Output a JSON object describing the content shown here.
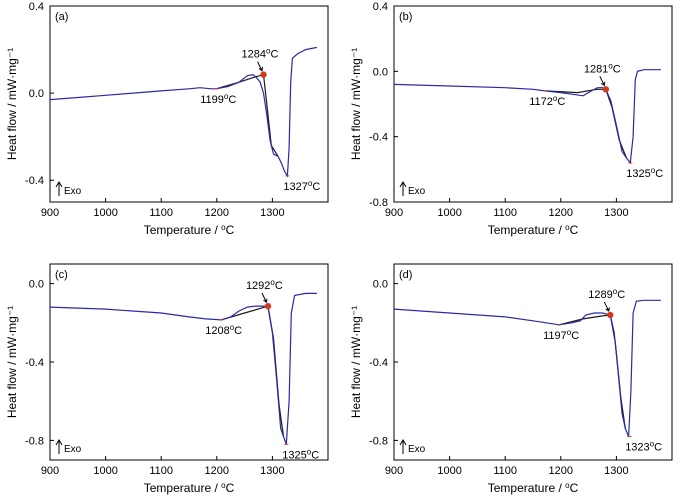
{
  "chart_data": [
    {
      "type": "line",
      "panel_label": "(a)",
      "xlabel": "Temperature / °C",
      "ylabel": "Heat flow / mW·mg⁻¹",
      "xlim": [
        900,
        1400
      ],
      "ylim": [
        -0.5,
        0.4
      ],
      "x_ticks": [
        900,
        1000,
        1100,
        1200,
        1300
      ],
      "y_ticks": [
        0.4,
        0.0,
        -0.4
      ],
      "y_tick_labels": [
        "0.4",
        "0.0",
        "-0.4"
      ],
      "exo_label": "Exo",
      "series": [
        {
          "color": "#2a2aa8",
          "points": [
            [
              900,
              -0.03
            ],
            [
              950,
              -0.02
            ],
            [
              1000,
              -0.01
            ],
            [
              1050,
              0.0
            ],
            [
              1100,
              0.01
            ],
            [
              1150,
              0.02
            ],
            [
              1170,
              0.025
            ],
            [
              1190,
              0.02
            ],
            [
              1199,
              0.02
            ],
            [
              1220,
              0.03
            ],
            [
              1240,
              0.05
            ],
            [
              1255,
              0.08
            ],
            [
              1265,
              0.085
            ],
            [
              1272,
              0.07
            ],
            [
              1278,
              0.05
            ],
            [
              1284,
              0.0
            ],
            [
              1290,
              -0.1
            ],
            [
              1296,
              -0.22
            ],
            [
              1302,
              -0.28
            ],
            [
              1310,
              -0.29
            ],
            [
              1316,
              -0.32
            ],
            [
              1322,
              -0.36
            ],
            [
              1327,
              -0.38
            ],
            [
              1330,
              -0.25
            ],
            [
              1333,
              0.05
            ],
            [
              1336,
              0.16
            ],
            [
              1345,
              0.18
            ],
            [
              1360,
              0.2
            ],
            [
              1380,
              0.21
            ]
          ]
        },
        {
          "color": "#1a1a1a",
          "points": [
            [
              1199,
              0.02
            ],
            [
              1240,
              0.05
            ],
            [
              1270,
              0.075
            ],
            [
              1284,
              0.085
            ],
            [
              1290,
              -0.05
            ],
            [
              1298,
              -0.24
            ],
            [
              1310,
              -0.29
            ]
          ]
        }
      ],
      "markers": [
        {
          "x": 1199,
          "y": 0.02,
          "label": "1199°C",
          "kind": "tick"
        },
        {
          "x": 1284,
          "y": 0.085,
          "label": "1284°C",
          "kind": "dot"
        },
        {
          "x": 1327,
          "y": -0.38,
          "label": "1327°C",
          "kind": "tick"
        }
      ]
    },
    {
      "type": "line",
      "panel_label": "(b)",
      "xlabel": "Temperature / °C",
      "ylabel": "Heat flow / mW·mg⁻¹",
      "xlim": [
        900,
        1400
      ],
      "ylim": [
        -0.8,
        0.4
      ],
      "x_ticks": [
        900,
        1000,
        1100,
        1200,
        1300
      ],
      "y_ticks": [
        0.4,
        0.0,
        -0.4,
        -0.8
      ],
      "y_tick_labels": [
        "0.4",
        "0.0",
        "-0.4",
        "-0.8"
      ],
      "exo_label": "Exo",
      "series": [
        {
          "color": "#2a2aa8",
          "points": [
            [
              900,
              -0.08
            ],
            [
              1000,
              -0.09
            ],
            [
              1100,
              -0.1
            ],
            [
              1150,
              -0.11
            ],
            [
              1172,
              -0.12
            ],
            [
              1200,
              -0.13
            ],
            [
              1220,
              -0.14
            ],
            [
              1240,
              -0.15
            ],
            [
              1255,
              -0.12
            ],
            [
              1266,
              -0.1
            ],
            [
              1275,
              -0.1
            ],
            [
              1281,
              -0.11
            ],
            [
              1290,
              -0.18
            ],
            [
              1300,
              -0.33
            ],
            [
              1310,
              -0.49
            ],
            [
              1318,
              -0.53
            ],
            [
              1325,
              -0.56
            ],
            [
              1330,
              -0.4
            ],
            [
              1334,
              -0.05
            ],
            [
              1338,
              0.0
            ],
            [
              1350,
              0.01
            ],
            [
              1370,
              0.01
            ],
            [
              1380,
              0.01
            ]
          ]
        },
        {
          "color": "#1a1a1a",
          "points": [
            [
              1172,
              -0.12
            ],
            [
              1230,
              -0.13
            ],
            [
              1265,
              -0.11
            ],
            [
              1281,
              -0.11
            ],
            [
              1292,
              -0.22
            ],
            [
              1305,
              -0.42
            ],
            [
              1318,
              -0.53
            ]
          ]
        }
      ],
      "markers": [
        {
          "x": 1172,
          "y": -0.12,
          "label": "1172°C",
          "kind": "tick"
        },
        {
          "x": 1281,
          "y": -0.11,
          "label": "1281°C",
          "kind": "dot"
        },
        {
          "x": 1325,
          "y": -0.56,
          "label": "1325°C",
          "kind": "tick"
        }
      ]
    },
    {
      "type": "line",
      "panel_label": "(c)",
      "xlabel": "Temperature / °C",
      "ylabel": "Heat flow / mW·mg⁻¹",
      "xlim": [
        900,
        1400
      ],
      "ylim": [
        -0.9,
        0.1
      ],
      "x_ticks": [
        900,
        1000,
        1100,
        1200,
        1300
      ],
      "y_ticks": [
        0.0,
        -0.4,
        -0.8
      ],
      "y_tick_labels": [
        "0.0",
        "-0.4",
        "-0.8"
      ],
      "exo_label": "Exo",
      "series": [
        {
          "color": "#2a2aa8",
          "points": [
            [
              900,
              -0.12
            ],
            [
              1000,
              -0.13
            ],
            [
              1100,
              -0.15
            ],
            [
              1150,
              -0.17
            ],
            [
              1180,
              -0.18
            ],
            [
              1208,
              -0.185
            ],
            [
              1225,
              -0.17
            ],
            [
              1240,
              -0.14
            ],
            [
              1255,
              -0.12
            ],
            [
              1270,
              -0.115
            ],
            [
              1285,
              -0.115
            ],
            [
              1292,
              -0.12
            ],
            [
              1300,
              -0.25
            ],
            [
              1308,
              -0.5
            ],
            [
              1315,
              -0.74
            ],
            [
              1320,
              -0.78
            ],
            [
              1325,
              -0.82
            ],
            [
              1330,
              -0.6
            ],
            [
              1334,
              -0.15
            ],
            [
              1340,
              -0.06
            ],
            [
              1360,
              -0.05
            ],
            [
              1380,
              -0.05
            ]
          ]
        },
        {
          "color": "#1a1a1a",
          "points": [
            [
              1208,
              -0.185
            ],
            [
              1250,
              -0.15
            ],
            [
              1280,
              -0.125
            ],
            [
              1292,
              -0.115
            ],
            [
              1302,
              -0.28
            ],
            [
              1312,
              -0.62
            ],
            [
              1320,
              -0.78
            ]
          ]
        }
      ],
      "markers": [
        {
          "x": 1208,
          "y": -0.185,
          "label": "1208°C",
          "kind": "tick"
        },
        {
          "x": 1292,
          "y": -0.115,
          "label": "1292°C",
          "kind": "dot"
        },
        {
          "x": 1325,
          "y": -0.82,
          "label": "1325°C",
          "kind": "tick"
        }
      ]
    },
    {
      "type": "line",
      "panel_label": "(d)",
      "xlabel": "Temperature / °C",
      "ylabel": "Heat flow / mW·mg⁻¹",
      "xlim": [
        900,
        1400
      ],
      "ylim": [
        -0.9,
        0.1
      ],
      "x_ticks": [
        900,
        1000,
        1100,
        1200,
        1300
      ],
      "y_ticks": [
        0.0,
        -0.4,
        -0.8
      ],
      "y_tick_labels": [
        "0.0",
        "-0.4",
        "-0.8"
      ],
      "exo_label": "Exo",
      "series": [
        {
          "color": "#2a2aa8",
          "points": [
            [
              900,
              -0.13
            ],
            [
              1000,
              -0.15
            ],
            [
              1100,
              -0.17
            ],
            [
              1150,
              -0.19
            ],
            [
              1197,
              -0.21
            ],
            [
              1220,
              -0.2
            ],
            [
              1235,
              -0.19
            ],
            [
              1245,
              -0.16
            ],
            [
              1260,
              -0.15
            ],
            [
              1275,
              -0.15
            ],
            [
              1289,
              -0.16
            ],
            [
              1296,
              -0.25
            ],
            [
              1303,
              -0.45
            ],
            [
              1310,
              -0.66
            ],
            [
              1316,
              -0.74
            ],
            [
              1322,
              -0.78
            ],
            [
              1326,
              -0.55
            ],
            [
              1330,
              -0.15
            ],
            [
              1336,
              -0.09
            ],
            [
              1350,
              -0.085
            ],
            [
              1370,
              -0.085
            ],
            [
              1380,
              -0.085
            ]
          ]
        },
        {
          "color": "#1a1a1a",
          "points": [
            [
              1197,
              -0.21
            ],
            [
              1240,
              -0.18
            ],
            [
              1275,
              -0.165
            ],
            [
              1289,
              -0.16
            ],
            [
              1298,
              -0.3
            ],
            [
              1308,
              -0.58
            ],
            [
              1316,
              -0.74
            ]
          ]
        }
      ],
      "markers": [
        {
          "x": 1197,
          "y": -0.21,
          "label": "1197°C",
          "kind": "tick"
        },
        {
          "x": 1289,
          "y": -0.16,
          "label": "1289°C",
          "kind": "dot"
        },
        {
          "x": 1323,
          "y": -0.78,
          "label": "1323°C",
          "kind": "tick"
        }
      ]
    }
  ]
}
